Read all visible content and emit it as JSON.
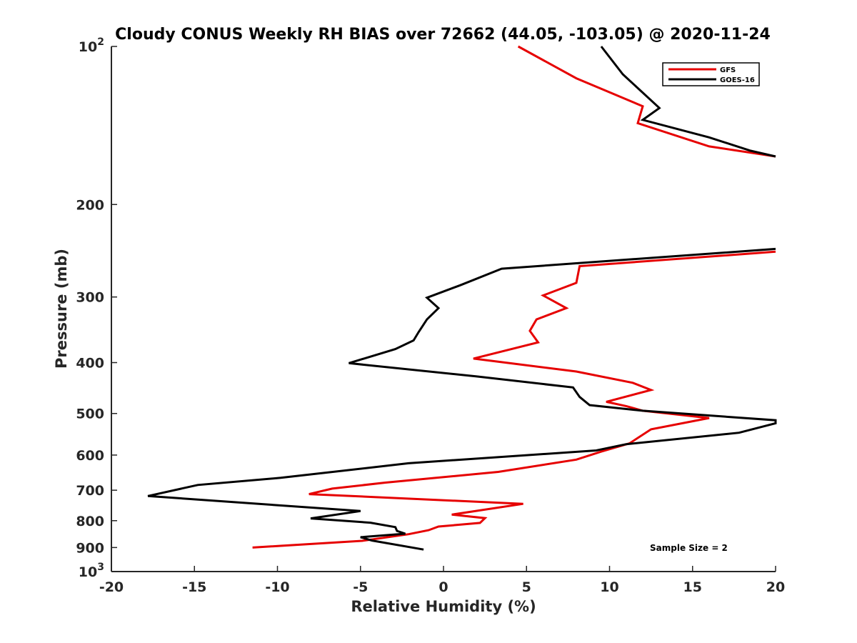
{
  "chart_data": {
    "type": "line",
    "title": "Cloudy CONUS Weekly RH BIAS over 72662 (44.05, -103.05) @ 2020-11-24",
    "xlabel": "Relative Humidity (%)",
    "ylabel": "Pressure (mb)",
    "xlim": [
      -20,
      20
    ],
    "ylim": [
      100,
      1000
    ],
    "yscale": "log",
    "yreversed": true,
    "grid": false,
    "legend_position": "top-right",
    "x_ticks": [
      {
        "value": -20,
        "label": "-20"
      },
      {
        "value": -15,
        "label": "-15"
      },
      {
        "value": -10,
        "label": "-10"
      },
      {
        "value": -5,
        "label": "-5"
      },
      {
        "value": 0,
        "label": "0"
      },
      {
        "value": 5,
        "label": "5"
      },
      {
        "value": 10,
        "label": "10"
      },
      {
        "value": 15,
        "label": "15"
      },
      {
        "value": 20,
        "label": "20"
      }
    ],
    "y_ticks": [
      {
        "value": 100,
        "base": "10",
        "exp": "2"
      },
      {
        "value": 200,
        "base": "200",
        "exp": ""
      },
      {
        "value": 300,
        "base": "300",
        "exp": ""
      },
      {
        "value": 400,
        "base": "400",
        "exp": ""
      },
      {
        "value": 500,
        "base": "500",
        "exp": ""
      },
      {
        "value": 600,
        "base": "600",
        "exp": ""
      },
      {
        "value": 700,
        "base": "700",
        "exp": ""
      },
      {
        "value": 800,
        "base": "800",
        "exp": ""
      },
      {
        "value": 900,
        "base": "900",
        "exp": ""
      },
      {
        "value": 1000,
        "base": "10",
        "exp": "3"
      }
    ],
    "series": [
      {
        "name": "GFS",
        "color": "#e60000",
        "points": [
          [
            4.5,
            100
          ],
          [
            8,
            115
          ],
          [
            12,
            130
          ],
          [
            11.7,
            140
          ],
          [
            16,
            155
          ],
          [
            20,
            162
          ],
          [
            null,
            null
          ],
          [
            20,
            246
          ],
          [
            8.2,
            262
          ],
          [
            8,
            282
          ],
          [
            6,
            298
          ],
          [
            7.4,
            315
          ],
          [
            5.6,
            331
          ],
          [
            5.2,
            348
          ],
          [
            5.7,
            366
          ],
          [
            1.8,
            393
          ],
          [
            8,
            416
          ],
          [
            11.4,
            437
          ],
          [
            12.5,
            451
          ],
          [
            9.8,
            475
          ],
          [
            11,
            484
          ],
          [
            12,
            494
          ],
          [
            16,
            510
          ],
          [
            12.5,
            536
          ],
          [
            11.2,
            570
          ],
          [
            9.5,
            591
          ],
          [
            8,
            612
          ],
          [
            3.3,
            646
          ],
          [
            -3.5,
            677
          ],
          [
            -6.7,
            695
          ],
          [
            -8.1,
            712
          ],
          [
            4.8,
            743
          ],
          [
            0.5,
            779
          ],
          [
            2.5,
            791
          ],
          [
            2.2,
            808
          ],
          [
            -0.3,
            821
          ],
          [
            -0.9,
            834
          ],
          [
            -2.1,
            849
          ],
          [
            -4.9,
            874
          ],
          [
            -11.5,
            900
          ]
        ]
      },
      {
        "name": "GOES-16",
        "color": "#000000",
        "points": [
          [
            9.5,
            100
          ],
          [
            10.8,
            113
          ],
          [
            13,
            131
          ],
          [
            12,
            138
          ],
          [
            16,
            149
          ],
          [
            18.5,
            158
          ],
          [
            20,
            162
          ],
          [
            null,
            null
          ],
          [
            20,
            243
          ],
          [
            3.5,
            265
          ],
          [
            1,
            285
          ],
          [
            -1,
            301
          ],
          [
            -0.3,
            315
          ],
          [
            -1,
            331
          ],
          [
            -1.5,
            350
          ],
          [
            -1.8,
            363
          ],
          [
            -2.9,
            377
          ],
          [
            -5.7,
            401
          ],
          [
            2,
            425
          ],
          [
            7.8,
            446
          ],
          [
            8.2,
            465
          ],
          [
            8.8,
            482
          ],
          [
            12,
            494
          ],
          [
            20,
            515
          ],
          [
            20,
            522
          ],
          [
            17.8,
            544
          ],
          [
            11,
            572
          ],
          [
            9.2,
            588
          ],
          [
            -2.1,
            622
          ],
          [
            -9.8,
            663
          ],
          [
            -14.8,
            684
          ],
          [
            -17.8,
            718
          ],
          [
            -5,
            767
          ],
          [
            -8,
            792
          ],
          [
            -4.4,
            807
          ],
          [
            -2.9,
            823
          ],
          [
            -2.8,
            837
          ],
          [
            -2.3,
            847
          ],
          [
            -5,
            860
          ],
          [
            -4.3,
            873
          ],
          [
            -1.2,
            908
          ]
        ]
      }
    ],
    "annotations": [
      {
        "text": "Sample Size = 2"
      }
    ]
  }
}
